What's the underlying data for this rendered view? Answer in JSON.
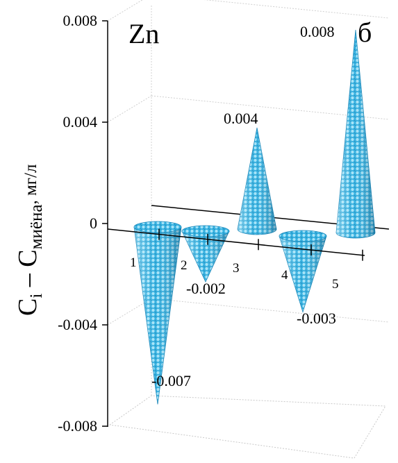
{
  "chart_data": {
    "type": "bar",
    "style": "3d-cone",
    "element_label": "Zn",
    "panel_label": "б",
    "ylabel": {
      "main": "C",
      "sub_i": "i",
      "dash": " – C",
      "sub_ref": "миёна",
      "unit": ", мг/л"
    },
    "ylim": [
      -0.008,
      0.008
    ],
    "yticks": [
      {
        "value": 0.008,
        "label": "0.008"
      },
      {
        "value": 0.004,
        "label": "0.004"
      },
      {
        "value": 0,
        "label": "0"
      },
      {
        "value": -0.004,
        "label": "-0.004"
      },
      {
        "value": -0.008,
        "label": "-0.008"
      }
    ],
    "categories": [
      "1",
      "2",
      "3",
      "4",
      "5"
    ],
    "values": [
      -0.007,
      -0.002,
      0.004,
      -0.003,
      0.008
    ],
    "value_labels": [
      "-0.007",
      "-0.002",
      "0.004",
      "-0.003",
      "0.008"
    ],
    "grid": true,
    "colors": {
      "cone": "#33b3e6",
      "cone_dark": "#1a86b8",
      "cone_light": "#8fd9f5"
    }
  }
}
